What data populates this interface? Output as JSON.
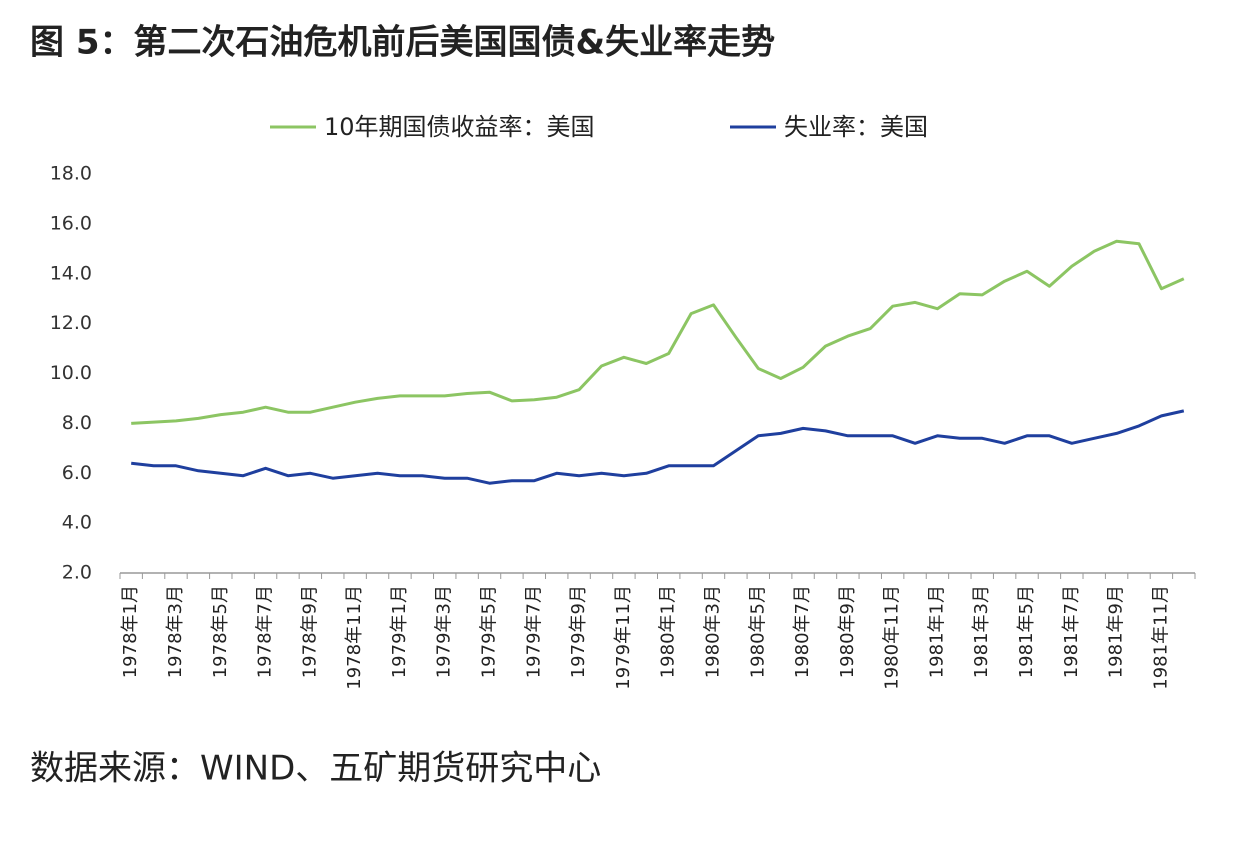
{
  "chart_data": {
    "type": "line",
    "title": "图 5：第二次石油危机前后美国国债&失业率走势",
    "source": "数据来源：WIND、五矿期货研究中心",
    "categories": [
      "1978年1月",
      null,
      "1978年3月",
      null,
      "1978年5月",
      null,
      "1978年7月",
      null,
      "1978年9月",
      null,
      "1978年11月",
      null,
      "1979年1月",
      null,
      "1979年3月",
      null,
      "1979年5月",
      null,
      "1979年7月",
      null,
      "1979年9月",
      null,
      "1979年11月",
      null,
      "1980年1月",
      null,
      "1980年3月",
      null,
      "1980年5月",
      null,
      "1980年7月",
      null,
      "1980年9月",
      null,
      "1980年11月",
      null,
      "1981年1月",
      null,
      "1981年3月",
      null,
      "1981年5月",
      null,
      "1981年7月",
      null,
      "1981年9月",
      null,
      "1981年11月",
      null
    ],
    "series": [
      {
        "name": "10年期国债收益率：美国",
        "color": "#8cc563",
        "values": [
          8.0,
          8.05,
          8.1,
          8.2,
          8.35,
          8.45,
          8.65,
          8.45,
          8.45,
          8.65,
          8.85,
          9.0,
          9.1,
          9.1,
          9.1,
          9.2,
          9.25,
          8.9,
          8.95,
          9.05,
          9.35,
          10.3,
          10.65,
          10.4,
          10.8,
          12.4,
          12.75,
          11.45,
          10.2,
          9.8,
          10.25,
          11.1,
          11.5,
          11.8,
          12.7,
          12.85,
          12.6,
          13.2,
          13.15,
          13.7,
          14.1,
          13.5,
          14.3,
          14.9,
          15.3,
          15.2,
          13.4,
          13.8
        ]
      },
      {
        "name": "失业率：美国",
        "color": "#1f3f9e",
        "values": [
          6.4,
          6.3,
          6.3,
          6.1,
          6.0,
          5.9,
          6.2,
          5.9,
          6.0,
          5.8,
          5.9,
          6.0,
          5.9,
          5.9,
          5.8,
          5.8,
          5.6,
          5.7,
          5.7,
          6.0,
          5.9,
          6.0,
          5.9,
          6.0,
          6.3,
          6.3,
          6.3,
          6.9,
          7.5,
          7.6,
          7.8,
          7.7,
          7.5,
          7.5,
          7.5,
          7.2,
          7.5,
          7.4,
          7.4,
          7.2,
          7.5,
          7.5,
          7.2,
          7.4,
          7.6,
          7.9,
          8.3,
          8.5
        ]
      }
    ],
    "ylim": [
      2,
      18
    ],
    "yticks": [
      {
        "value": 2,
        "label": "2.0"
      },
      {
        "value": 4,
        "label": "4.0"
      },
      {
        "value": 6,
        "label": "6.0"
      },
      {
        "value": 8,
        "label": "8.0"
      },
      {
        "value": 10,
        "label": "10.0"
      },
      {
        "value": 12,
        "label": "12.0"
      },
      {
        "value": 14,
        "label": "14.0"
      },
      {
        "value": 16,
        "label": "16.0"
      },
      {
        "value": 18,
        "label": "18.0"
      }
    ],
    "grid": false,
    "legend": "top"
  }
}
